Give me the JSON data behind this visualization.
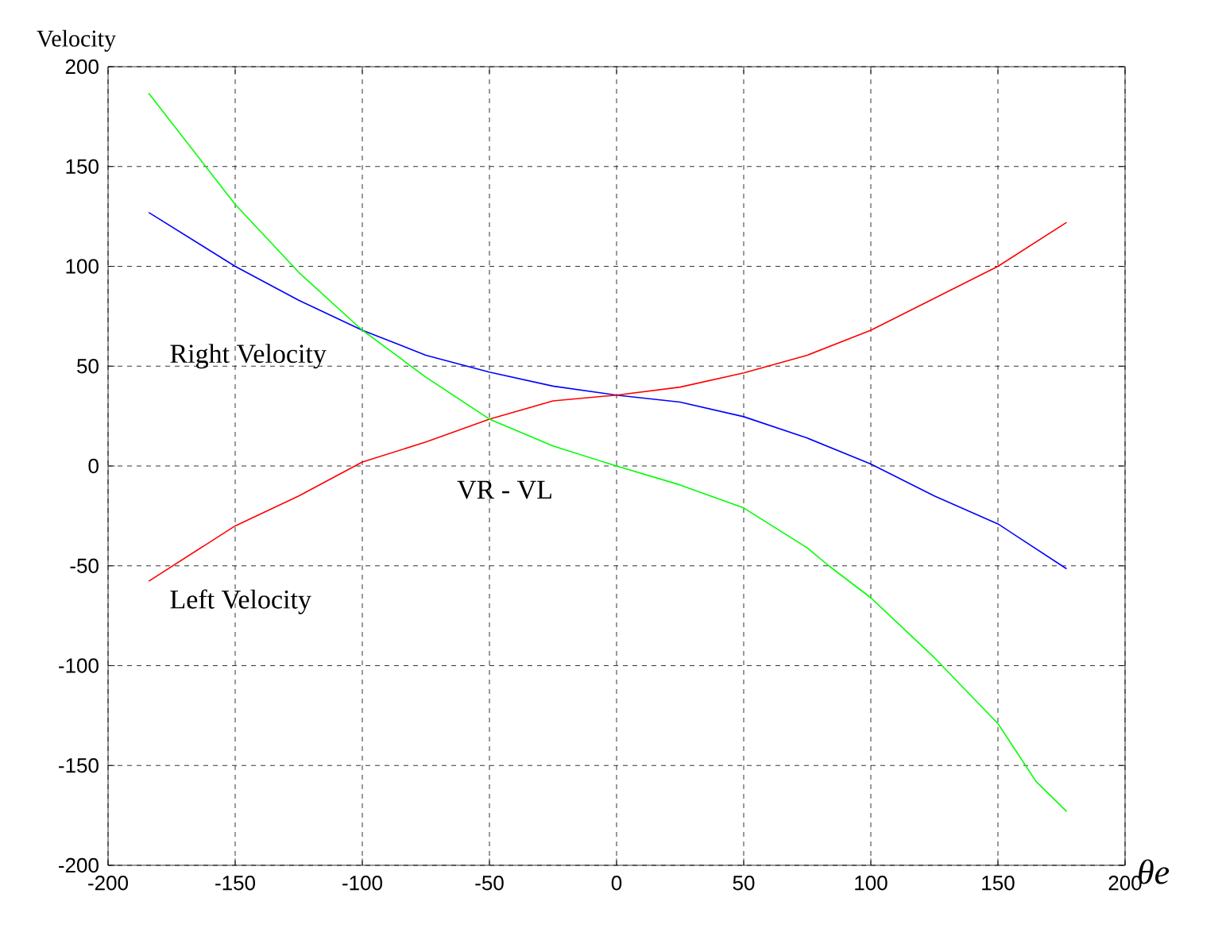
{
  "chart_data": {
    "type": "line",
    "xlabel": "θe",
    "ylabel": "Velocity",
    "xlim": [
      -200,
      200
    ],
    "ylim": [
      -200,
      200
    ],
    "xticks": [
      -200,
      -150,
      -100,
      -50,
      0,
      50,
      100,
      150,
      200
    ],
    "yticks": [
      -200,
      -150,
      -100,
      -50,
      0,
      50,
      100,
      150,
      200
    ],
    "grid": true,
    "legend": false,
    "marker": "none",
    "line_style": "solid",
    "series": [
      {
        "name": "Right Velocity",
        "color": "#0000ff",
        "x": [
          -184,
          -150,
          -125,
          -100,
          -75,
          -50,
          -25,
          0,
          25,
          50,
          75,
          100,
          125,
          150,
          177
        ],
        "values": [
          127,
          100,
          83,
          68,
          55.5,
          47,
          40,
          35.5,
          32,
          24.7,
          14,
          1,
          -15,
          -29,
          -51.5
        ]
      },
      {
        "name": "Left Velocity",
        "color": "#ff0000",
        "x": [
          -184,
          -150,
          -125,
          -100,
          -75,
          -50,
          -25,
          0,
          25,
          50,
          75,
          100,
          125,
          150,
          177
        ],
        "values": [
          -57.7,
          -30,
          -15,
          2,
          12,
          23.5,
          32.6,
          35.5,
          39.5,
          46.6,
          55.5,
          68,
          84,
          100,
          122
        ]
      },
      {
        "name": "VR - VL",
        "color": "#00ff00",
        "x": [
          -184,
          -150,
          -125,
          -100,
          -75,
          -50,
          -25,
          0,
          25,
          50,
          75,
          83.5,
          100,
          125,
          150,
          165,
          177
        ],
        "values": [
          186.7,
          131,
          97,
          68,
          44.5,
          23.5,
          10,
          0,
          -9.5,
          -21,
          -41,
          -50,
          -66,
          -96,
          -129,
          -158,
          -173
        ]
      }
    ]
  }
}
